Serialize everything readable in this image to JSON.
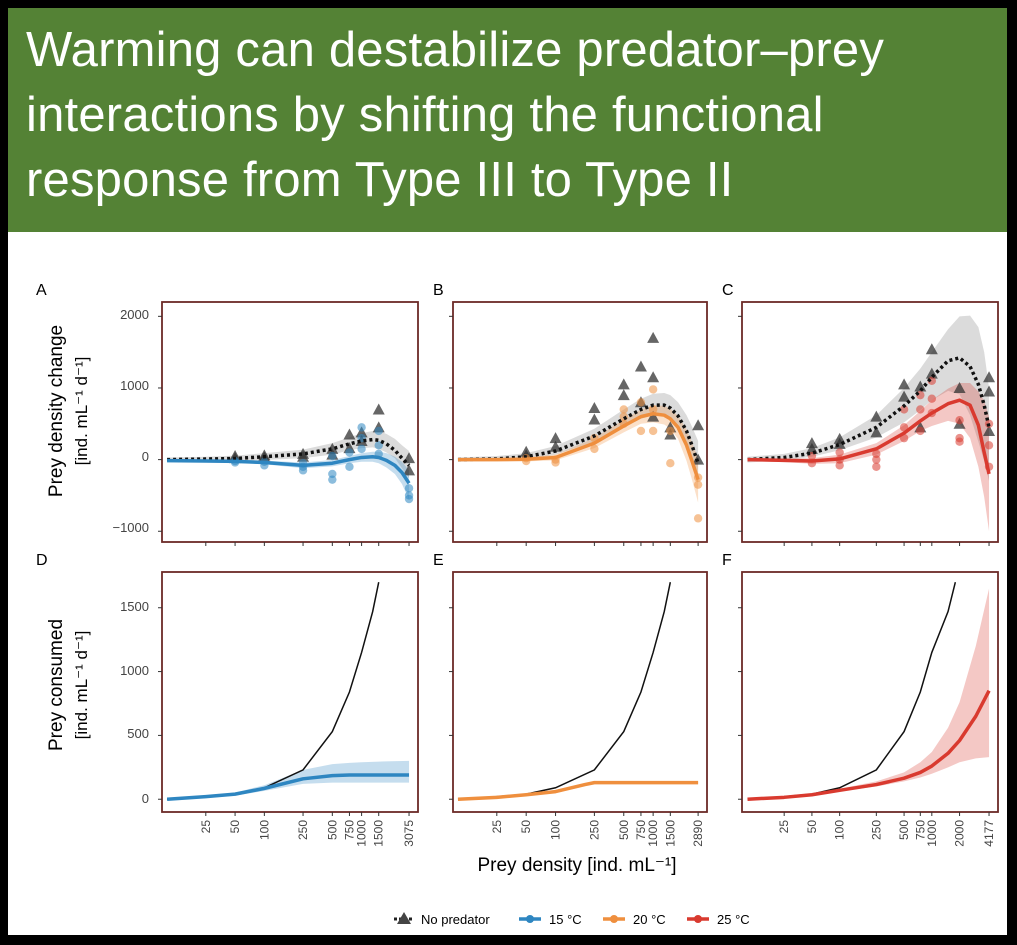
{
  "banner": {
    "title": "Warming can destabilize predator–prey interactions by shifting the functional response from Type III to Type II"
  },
  "colors": {
    "banner_bg": "#548235",
    "panel_border": "#6b2a26",
    "no_predator": "#222222",
    "c15": "#2e86c1",
    "c20": "#ef8f3e",
    "c25": "#d93a2f"
  },
  "chart_data": [
    {
      "panel": "A",
      "type": "scatter+line",
      "ylim": [
        -1150,
        2200
      ],
      "x_ticks": [
        "25",
        "50",
        "100",
        "250",
        "500",
        "750",
        "1000",
        "1500",
        "3075"
      ],
      "no_predator_line": {
        "x": [
          10,
          25,
          50,
          100,
          250,
          500,
          750,
          1000,
          1300,
          1500,
          1800,
          2200,
          2600,
          3075
        ],
        "y": [
          0,
          8,
          15,
          40,
          80,
          150,
          220,
          260,
          280,
          270,
          220,
          130,
          20,
          -80
        ]
      },
      "no_predator_band": {
        "upper": [
          30,
          40,
          55,
          90,
          140,
          230,
          310,
          370,
          400,
          400,
          360,
          290,
          200,
          120
        ],
        "lower": [
          -30,
          -20,
          -20,
          -5,
          20,
          70,
          130,
          160,
          170,
          150,
          100,
          20,
          -120,
          -260
        ]
      },
      "no_predator_points": {
        "x": [
          50,
          50,
          100,
          100,
          250,
          250,
          500,
          500,
          750,
          750,
          1000,
          1000,
          1500,
          1500,
          3075,
          3075
        ],
        "y": [
          50,
          20,
          60,
          30,
          80,
          40,
          150,
          70,
          350,
          160,
          380,
          260,
          700,
          450,
          20,
          -150
        ]
      },
      "series": [
        {
          "name": "15 °C",
          "color_key": "c15",
          "line": {
            "x": [
              10,
              25,
              50,
              100,
              250,
              500,
              750,
              1000,
              1300,
              1500,
              1800,
              2200,
              2600,
              3075
            ],
            "y": [
              -15,
              -20,
              -25,
              -40,
              -80,
              -50,
              0,
              30,
              40,
              30,
              -10,
              -80,
              -180,
              -330
            ]
          },
          "band": {
            "upper": [
              5,
              0,
              -5,
              -15,
              -40,
              -5,
              50,
              90,
              110,
              110,
              90,
              40,
              -30,
              -150
            ],
            "lower": [
              -35,
              -40,
              -45,
              -65,
              -120,
              -95,
              -50,
              -30,
              -30,
              -50,
              -110,
              -200,
              -340,
              -560
            ]
          },
          "points": {
            "x": [
              50,
              50,
              100,
              100,
              250,
              250,
              250,
              500,
              500,
              500,
              750,
              750,
              1000,
              1000,
              1000,
              1500,
              1500,
              1500,
              3075,
              3075,
              3075
            ],
            "y": [
              -20,
              -40,
              -30,
              -80,
              -50,
              -150,
              -100,
              50,
              -200,
              -280,
              100,
              -100,
              450,
              300,
              150,
              400,
              200,
              80,
              -400,
              -500,
              -550
            ]
          }
        },
        {
          "name": "20 °C",
          "color_key": "c20"
        },
        {
          "name": "25 °C",
          "color_key": "c25"
        }
      ]
    },
    {
      "panel": "B",
      "type": "scatter+line",
      "ylim": [
        -1150,
        2200
      ],
      "x_ticks": [
        "25",
        "50",
        "100",
        "250",
        "500",
        "750",
        "1000",
        "1500",
        "2890"
      ],
      "no_predator_line": {
        "x": [
          10,
          25,
          50,
          100,
          250,
          500,
          750,
          1000,
          1300,
          1500,
          1800,
          2200,
          2500,
          2890
        ],
        "y": [
          0,
          10,
          40,
          120,
          330,
          570,
          700,
          760,
          760,
          720,
          610,
          400,
          200,
          -50
        ]
      },
      "no_predator_band": {
        "upper": [
          30,
          50,
          90,
          190,
          430,
          700,
          850,
          920,
          930,
          900,
          800,
          620,
          460,
          260
        ],
        "lower": [
          -30,
          -20,
          0,
          70,
          250,
          450,
          570,
          620,
          610,
          560,
          420,
          180,
          -50,
          -330
        ]
      },
      "no_predator_points": {
        "x": [
          50,
          50,
          100,
          100,
          250,
          250,
          500,
          500,
          750,
          750,
          1000,
          1000,
          1000,
          1500,
          1500,
          2890,
          2890
        ],
        "y": [
          110,
          60,
          300,
          180,
          720,
          560,
          1050,
          900,
          1300,
          800,
          1700,
          1150,
          600,
          450,
          350,
          480,
          0
        ]
      },
      "series": [
        {
          "name": "20 °C",
          "line": {
            "x": [
              10,
              25,
              50,
              100,
              250,
              500,
              750,
              1000,
              1300,
              1500,
              1800,
              2200,
              2500,
              2890
            ],
            "y": [
              0,
              0,
              5,
              30,
              230,
              470,
              600,
              640,
              620,
              570,
              450,
              200,
              -20,
              -280
            ]
          },
          "band": {
            "upper": [
              20,
              25,
              35,
              70,
              300,
              560,
              700,
              760,
              750,
              710,
              610,
              420,
              240,
              20
            ],
            "lower": [
              -20,
              -25,
              -25,
              -10,
              160,
              380,
              500,
              520,
              490,
              430,
              290,
              -20,
              -280,
              -600
            ]
          },
          "points": {
            "x": [
              50,
              50,
              100,
              100,
              250,
              250,
              500,
              500,
              500,
              750,
              750,
              1000,
              1000,
              1000,
              1500,
              1500,
              2890,
              2890,
              2890
            ],
            "y": [
              20,
              -20,
              0,
              -40,
              300,
              150,
              700,
              600,
              500,
              800,
              400,
              980,
              700,
              400,
              400,
              -50,
              -350,
              -250,
              -820
            ]
          }
        }
      ]
    },
    {
      "panel": "C",
      "type": "scatter+line",
      "ylim": [
        -1150,
        2200
      ],
      "x_ticks": [
        "25",
        "50",
        "100",
        "250",
        "500",
        "750",
        "1000",
        "2000",
        "4177"
      ],
      "no_predator_line": {
        "x": [
          10,
          25,
          50,
          100,
          250,
          500,
          750,
          1000,
          1500,
          2000,
          2600,
          3200,
          3700,
          4177
        ],
        "y": [
          0,
          30,
          90,
          210,
          450,
          750,
          960,
          1150,
          1380,
          1420,
          1300,
          1050,
          760,
          450
        ]
      },
      "no_predator_band": {
        "upper": [
          40,
          80,
          160,
          310,
          620,
          1000,
          1270,
          1500,
          1820,
          2000,
          2010,
          1850,
          1500,
          1000
        ],
        "lower": [
          -40,
          -10,
          40,
          130,
          310,
          520,
          690,
          830,
          960,
          910,
          620,
          250,
          -20,
          -300
        ]
      },
      "no_predator_points": {
        "x": [
          50,
          50,
          100,
          100,
          250,
          250,
          500,
          500,
          750,
          750,
          1000,
          1000,
          2000,
          2000,
          4177,
          4177,
          4177
        ],
        "y": [
          230,
          150,
          290,
          220,
          600,
          380,
          1050,
          880,
          1020,
          450,
          1540,
          1200,
          1000,
          500,
          1150,
          950,
          400
        ]
      },
      "series": [
        {
          "name": "25 °C",
          "line": {
            "x": [
              10,
              25,
              50,
              100,
              250,
              500,
              750,
              1000,
              1500,
              2000,
              2600,
              3200,
              3700,
              4177
            ],
            "y": [
              0,
              -10,
              -20,
              10,
              150,
              370,
              540,
              650,
              780,
              830,
              760,
              480,
              100,
              -200
            ]
          },
          "band": {
            "upper": [
              20,
              15,
              20,
              70,
              230,
              480,
              680,
              830,
              990,
              1070,
              1070,
              950,
              820,
              600
            ],
            "lower": [
              -20,
              -35,
              -60,
              -50,
              70,
              260,
              400,
              470,
              540,
              500,
              300,
              -100,
              -520,
              -1000
            ]
          },
          "points": {
            "x": [
              50,
              50,
              100,
              100,
              100,
              250,
              250,
              250,
              500,
              500,
              500,
              750,
              750,
              750,
              1000,
              1000,
              1000,
              2000,
              2000,
              2000,
              4177,
              4177,
              4177
            ],
            "y": [
              50,
              -50,
              100,
              0,
              -80,
              80,
              0,
              -100,
              700,
              450,
              300,
              900,
              700,
              400,
              1100,
              850,
              650,
              550,
              300,
              250,
              500,
              200,
              -100
            ]
          }
        }
      ]
    },
    {
      "panel": "D",
      "type": "line",
      "ylim": [
        -100,
        1780
      ],
      "x_ticks": [
        "25",
        "50",
        "100",
        "250",
        "500",
        "750",
        "1000",
        "1500",
        "3075"
      ],
      "no_predator_line": {
        "x": [
          10,
          25,
          50,
          100,
          250,
          500,
          750,
          1000,
          1300,
          1500
        ],
        "y": [
          0,
          20,
          40,
          90,
          230,
          530,
          840,
          1150,
          1470,
          1700
        ]
      },
      "series": [
        {
          "name": "15 °C",
          "line": {
            "x": [
              10,
              25,
              50,
              100,
              250,
              500,
              750,
              1000,
              1500,
              2000,
              3075
            ],
            "y": [
              0,
              20,
              40,
              85,
              160,
              185,
              190,
              190,
              190,
              190,
              190
            ]
          },
          "band": {
            "upper": [
              10,
              30,
              52,
              110,
              230,
              275,
              285,
              290,
              295,
              298,
              300
            ],
            "lower": [
              -5,
              10,
              28,
              65,
              120,
              130,
              130,
              130,
              130,
              130,
              130
            ]
          }
        }
      ]
    },
    {
      "panel": "E",
      "type": "line",
      "ylim": [
        -100,
        1780
      ],
      "x_ticks": [
        "25",
        "50",
        "100",
        "250",
        "500",
        "750",
        "1000",
        "1500",
        "2890"
      ],
      "no_predator_line": {
        "x": [
          10,
          25,
          50,
          100,
          250,
          500,
          750,
          1000,
          1300,
          1500
        ],
        "y": [
          0,
          20,
          40,
          90,
          230,
          530,
          840,
          1150,
          1470,
          1700
        ]
      },
      "series": [
        {
          "name": "20 °C",
          "line": {
            "x": [
              10,
              25,
              50,
              100,
              200,
              250,
              500,
              1000,
              1500,
              2890
            ],
            "y": [
              0,
              15,
              35,
              60,
              115,
              130,
              130,
              130,
              130,
              130
            ]
          },
          "band": {
            "upper": [
              8,
              22,
              43,
              72,
              125,
              138,
              138,
              138,
              138,
              138
            ],
            "lower": [
              -8,
              8,
              27,
              48,
              105,
              122,
              122,
              122,
              122,
              122
            ]
          }
        }
      ]
    },
    {
      "panel": "F",
      "type": "line",
      "ylim": [
        -100,
        1780
      ],
      "x_ticks": [
        "25",
        "50",
        "100",
        "250",
        "500",
        "750",
        "1000",
        "2000",
        "4177"
      ],
      "no_predator_line": {
        "x": [
          10,
          25,
          50,
          100,
          250,
          500,
          750,
          1000,
          1500,
          1800
        ],
        "y": [
          0,
          20,
          40,
          90,
          230,
          530,
          840,
          1150,
          1470,
          1700
        ]
      },
      "series": [
        {
          "name": "25 °C",
          "line": {
            "x": [
              10,
              25,
              50,
              100,
              250,
              500,
              750,
              1000,
              1500,
              2000,
              3000,
              4177
            ],
            "y": [
              0,
              15,
              35,
              70,
              115,
              165,
              210,
              260,
              360,
              460,
              650,
              850
            ]
          },
          "band": {
            "upper": [
              5,
              25,
              45,
              82,
              140,
              210,
              290,
              370,
              560,
              760,
              1200,
              1650
            ],
            "lower": [
              -5,
              8,
              28,
              62,
              100,
              140,
              170,
              200,
              250,
              290,
              320,
              330
            ]
          }
        }
      ]
    }
  ],
  "axes": {
    "y_label_top_line1": "Prey density change",
    "y_label_top_line2": "[ind. mL⁻¹ d⁻¹]",
    "y_label_bottom_line1": "Prey consumed",
    "y_label_bottom_line2": "[ind. mL⁻¹ d⁻¹]",
    "x_label": "Prey density [ind. mL⁻¹]",
    "top_y_ticks": [
      "2000",
      "1000",
      "0",
      "−1000"
    ],
    "bottom_y_ticks": [
      "1500",
      "1000",
      "500",
      "0"
    ]
  },
  "panel_letters": [
    "A",
    "B",
    "C",
    "D",
    "E",
    "F"
  ],
  "legend": {
    "no_predator": "No predator",
    "c15": "15 °C",
    "c20": "20 °C",
    "c25": "25 °C"
  }
}
